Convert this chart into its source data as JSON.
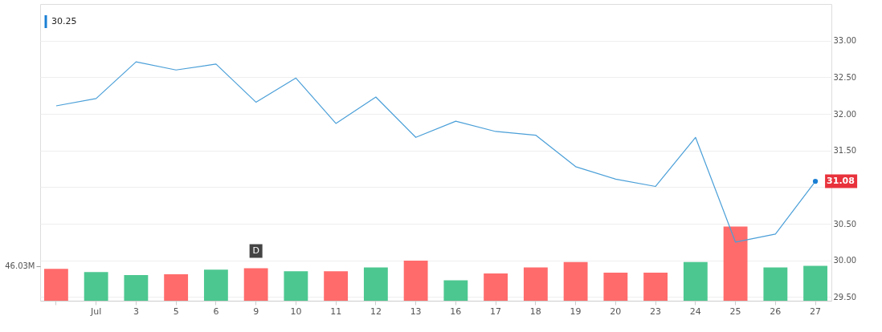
{
  "chart_data": {
    "type": "line",
    "categories": [
      null,
      "Jul",
      "3",
      "5",
      "6",
      "9",
      "10",
      "11",
      "12",
      "13",
      "16",
      "17",
      "18",
      "19",
      "20",
      "23",
      "24",
      "25",
      "26",
      "27"
    ],
    "series": [
      {
        "type": "bar",
        "axis": "y2",
        "values": [
          42,
          38,
          34,
          35,
          41,
          43,
          39,
          39,
          44,
          53,
          27,
          36,
          44,
          51,
          37,
          37,
          51,
          98,
          44,
          46.03
        ],
        "colors": [
          "#ff6b6b",
          "#4cc790",
          "#4cc790",
          "#ff6b6b",
          "#4cc790",
          "#ff6b6b",
          "#4cc790",
          "#ff6b6b",
          "#4cc790",
          "#ff6b6b",
          "#4cc790",
          "#ff6b6b",
          "#ff6b6b",
          "#ff6b6b",
          "#ff6b6b",
          "#ff6b6b",
          "#4cc790",
          "#ff6b6b",
          "#4cc790",
          "#4cc790"
        ]
      },
      {
        "color": "#4a9fd8",
        "values": [
          32.11,
          32.21,
          32.71,
          32.6,
          32.68,
          32.16,
          32.49,
          31.87,
          32.23,
          31.68,
          31.9,
          31.76,
          31.71,
          31.28,
          31.11,
          31.01,
          31.68,
          30.25,
          30.36,
          31.08
        ]
      }
    ],
    "ylim": [
      29.45,
      33.5
    ],
    "yticks": [
      {
        "value": 29.5,
        "label": "29.50"
      },
      {
        "value": 30.0,
        "label": "30.00"
      },
      {
        "value": 30.5,
        "label": "30.50"
      },
      {
        "value": 31.0,
        "label": null
      },
      {
        "value": 31.5,
        "label": "31.50"
      },
      {
        "value": 32.0,
        "label": "32.00"
      },
      {
        "value": 32.5,
        "label": "32.50"
      },
      {
        "value": 33.0,
        "label": "33.00"
      }
    ],
    "y2lim": [
      0,
      392
    ],
    "y2ticks": [
      {
        "value": 46.03,
        "label": "46.03M"
      }
    ],
    "annotations": [
      "30.25",
      {
        "text": "31.08",
        "x": "27",
        "y": 31.08
      },
      {
        "text": "D",
        "x": "9"
      }
    ],
    "grid": "y"
  }
}
